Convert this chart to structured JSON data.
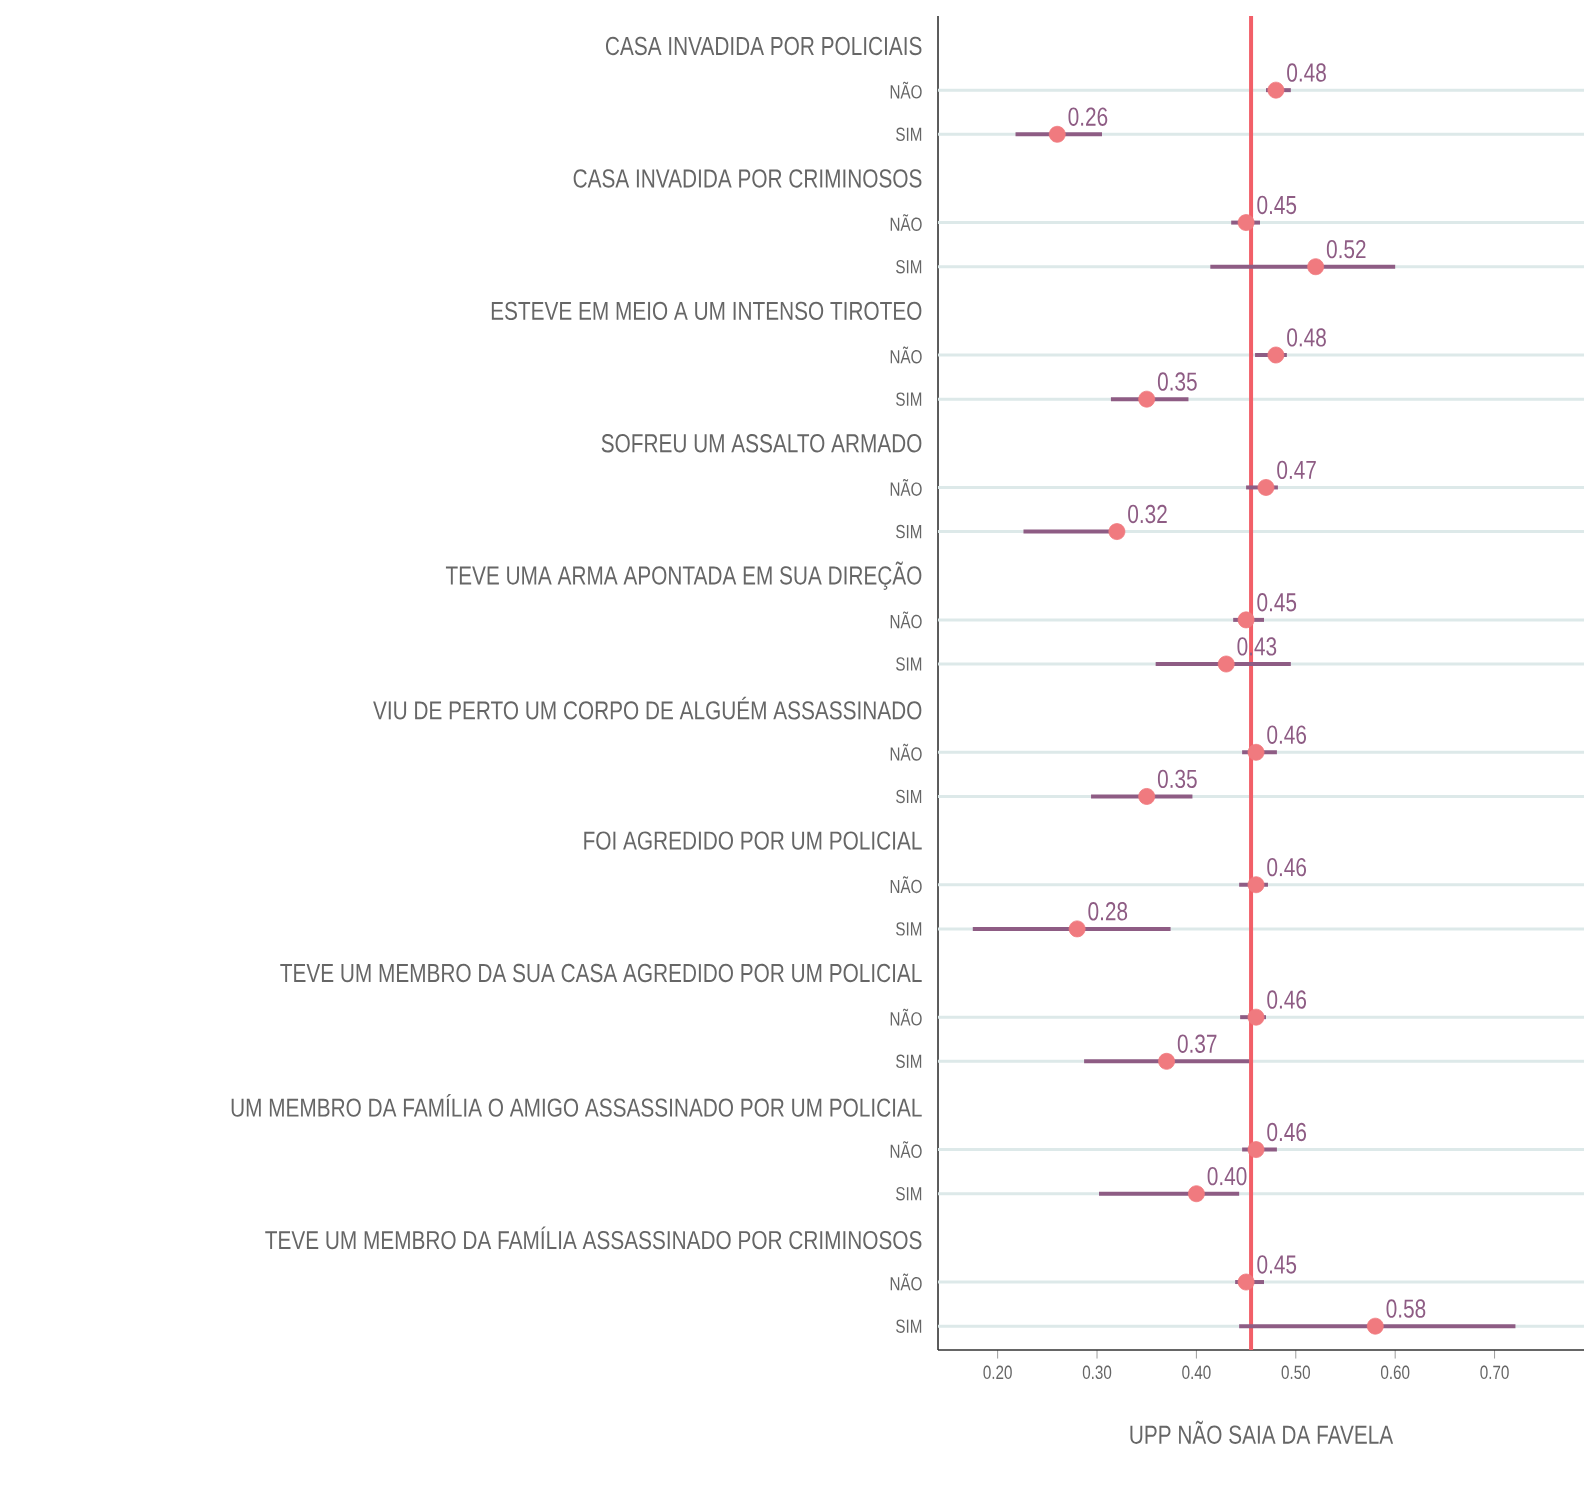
{
  "chart_data": {
    "type": "scatter",
    "orientation": "horizontal",
    "color": "#f07a7f",
    "grid": "y",
    "xlabel": "UPP NÃO SAIA DA FAVELA",
    "xlim": [
      0.14,
      0.79
    ],
    "xticks": [
      {
        "value": 0.2,
        "label": "0.20"
      },
      {
        "value": 0.3,
        "label": "0.30"
      },
      {
        "value": 0.4,
        "label": "0.40"
      },
      {
        "value": 0.5,
        "label": "0.50"
      },
      {
        "value": 0.6,
        "label": "0.60"
      },
      {
        "value": 0.7,
        "label": "0.70"
      }
    ],
    "ref_lines": [
      {
        "axis": "x",
        "value": 0.455,
        "color": "#f25f68"
      }
    ],
    "categories": [
      "CASA INVADIDA POR POLICIAIS",
      "NÃO",
      "SIM",
      "CASA INVADIDA POR CRIMINOSOS",
      "NÃO",
      "SIM",
      "ESTEVE EM MEIO A UM INTENSO TIROTEO",
      "NÃO",
      "SIM",
      "SOFREU UM ASSALTO ARMADO",
      "NÃO",
      "SIM",
      "TEVE UMA ARMA APONTADA EM SUA DIREÇÃO",
      "NÃO",
      "SIM",
      "VIU DE PERTO UM CORPO DE ALGUÉM ASSASSINADO",
      "NÃO",
      "SIM",
      "FOI AGREDIDO POR UM POLICIAL",
      "NÃO",
      "SIM",
      "TEVE UM MEMBRO DA SUA CASA AGREDIDO POR UM POLICIAL",
      "NÃO",
      "SIM",
      "UM MEMBRO DA FAMÍLIA O AMIGO ASSASSINADO POR UM POLICIAL",
      "NÃO",
      "SIM",
      "TEVE UM MEMBRO DA FAMÍLIA ASSASSINADO POR CRIMINOSOS",
      "NÃO",
      "SIM"
    ],
    "values": [
      null,
      0.48,
      0.26,
      null,
      0.45,
      0.52,
      null,
      0.48,
      0.35,
      null,
      0.47,
      0.32,
      null,
      0.45,
      0.43,
      null,
      0.46,
      0.35,
      null,
      0.46,
      0.28,
      null,
      0.46,
      0.37,
      null,
      0.46,
      0.4,
      null,
      0.45,
      0.58
    ],
    "value_labels": [
      null,
      "0.48",
      "0.26",
      null,
      "0.45",
      "0.52",
      null,
      "0.48",
      "0.35",
      null,
      "0.47",
      "0.32",
      null,
      "0.45",
      "0.43",
      null,
      "0.46",
      "0.35",
      null,
      "0.46",
      "0.28",
      null,
      "0.46",
      "0.37",
      null,
      "0.46",
      "0.40",
      null,
      "0.45",
      "0.58"
    ],
    "errors": [
      null,
      [
        0.47,
        0.495
      ],
      [
        0.218,
        0.305
      ],
      null,
      [
        0.435,
        0.464
      ],
      [
        0.414,
        0.6
      ],
      null,
      [
        0.459,
        0.491
      ],
      [
        0.314,
        0.392
      ],
      null,
      [
        0.45,
        0.482
      ],
      [
        0.226,
        0.325
      ],
      null,
      [
        0.437,
        0.468
      ],
      [
        0.359,
        0.495
      ],
      null,
      [
        0.446,
        0.481
      ],
      [
        0.294,
        0.396
      ],
      null,
      [
        0.443,
        0.472
      ],
      [
        0.175,
        0.374
      ],
      null,
      [
        0.444,
        0.47
      ],
      [
        0.287,
        0.453
      ],
      null,
      [
        0.446,
        0.481
      ],
      [
        0.302,
        0.443
      ],
      null,
      [
        0.439,
        0.468
      ],
      [
        0.443,
        0.721
      ]
    ]
  }
}
